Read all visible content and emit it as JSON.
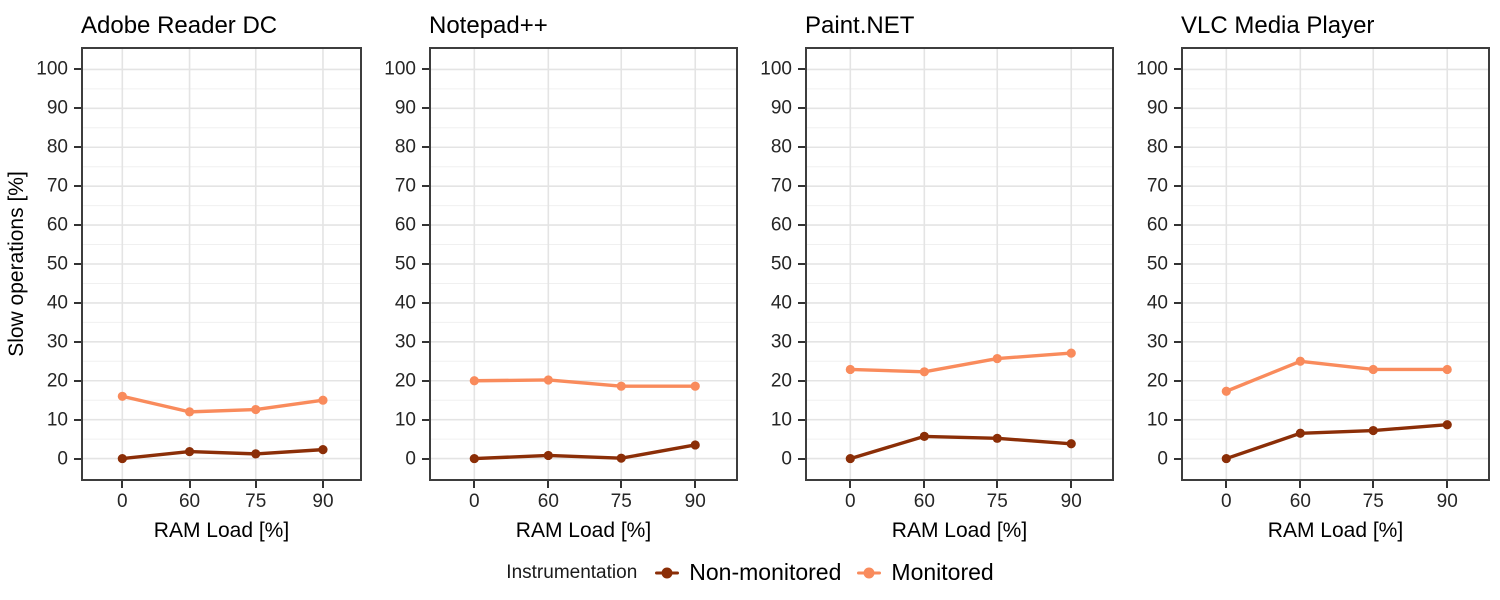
{
  "chart": {
    "y_axis_title": "Slow operations [%]",
    "x_axis_title": "RAM Load [%]",
    "colors": {
      "non_monitored": "#8B2E07",
      "monitored": "#F98B5C",
      "grid_major": "#E4E4E4",
      "grid_minor": "#F0F0F0",
      "panel_border": "#3D3D3D",
      "tick_mark": "#333333",
      "tick_text": "#262626"
    }
  },
  "chart_data": {
    "type": "line",
    "x": [
      0,
      60,
      75,
      90
    ],
    "x_tick_labels": [
      "0",
      "60",
      "75",
      "90"
    ],
    "y_ticks": [
      0,
      10,
      20,
      30,
      40,
      50,
      60,
      70,
      80,
      90,
      100
    ],
    "ylim": [
      0,
      100
    ],
    "xlabel": "RAM Load [%]",
    "ylabel": "Slow operations [%]",
    "grid": true,
    "legend_position": "bottom",
    "legend": {
      "title": "Instrumentation",
      "items": [
        {
          "label": "Non-monitored",
          "color": "#8B2E07"
        },
        {
          "label": "Monitored",
          "color": "#F98B5C"
        }
      ]
    },
    "facets": [
      {
        "title": "Adobe Reader DC",
        "series": [
          {
            "name": "Non-monitored",
            "color": "#8B2E07",
            "values": [
              0,
              1.8,
              1.2,
              2.3
            ]
          },
          {
            "name": "Monitored",
            "color": "#F98B5C",
            "values": [
              16,
              12,
              12.6,
              15
            ]
          }
        ]
      },
      {
        "title": "Notepad++",
        "series": [
          {
            "name": "Non-monitored",
            "color": "#8B2E07",
            "values": [
              0,
              0.8,
              0.1,
              3.5
            ]
          },
          {
            "name": "Monitored",
            "color": "#F98B5C",
            "values": [
              20,
              20.2,
              18.6,
              18.6
            ]
          }
        ]
      },
      {
        "title": "Paint.NET",
        "series": [
          {
            "name": "Non-monitored",
            "color": "#8B2E07",
            "values": [
              0,
              5.7,
              5.2,
              3.8
            ]
          },
          {
            "name": "Monitored",
            "color": "#F98B5C",
            "values": [
              22.9,
              22.3,
              25.7,
              27.1
            ]
          }
        ]
      },
      {
        "title": "VLC Media Player",
        "series": [
          {
            "name": "Non-monitored",
            "color": "#8B2E07",
            "values": [
              0,
              6.5,
              7.2,
              8.7
            ]
          },
          {
            "name": "Monitored",
            "color": "#F98B5C",
            "values": [
              17.3,
              25,
              22.9,
              22.9
            ]
          }
        ]
      }
    ]
  }
}
